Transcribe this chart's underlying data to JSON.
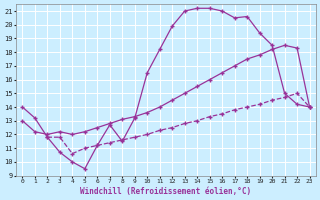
{
  "title": "",
  "xlabel": "Windchill (Refroidissement éolien,°C)",
  "bg_color": "#cceeff",
  "line_color": "#993399",
  "grid_color": "#ffffff",
  "xlim": [
    -0.5,
    23.5
  ],
  "ylim": [
    9,
    21.5
  ],
  "yticks": [
    9,
    10,
    11,
    12,
    13,
    14,
    15,
    16,
    17,
    18,
    19,
    20,
    21
  ],
  "xticks": [
    0,
    1,
    2,
    3,
    4,
    5,
    6,
    7,
    8,
    9,
    10,
    11,
    12,
    13,
    14,
    15,
    16,
    17,
    18,
    19,
    20,
    21,
    22,
    23
  ],
  "line1_x": [
    0,
    1,
    2,
    3,
    4,
    5,
    6,
    7,
    8,
    9,
    10,
    11,
    12,
    13,
    14,
    15,
    16,
    17,
    18,
    19,
    20,
    21,
    22,
    23
  ],
  "line1_y": [
    14.0,
    13.2,
    11.8,
    10.7,
    10.0,
    9.5,
    11.2,
    12.7,
    11.5,
    13.2,
    16.5,
    18.2,
    19.9,
    21.0,
    21.2,
    21.2,
    21.0,
    20.5,
    20.6,
    19.4,
    18.5,
    15.0,
    14.2,
    14.0
  ],
  "line2_x": [
    0,
    1,
    2,
    3,
    4,
    5,
    6,
    7,
    8,
    9,
    10,
    11,
    12,
    13,
    14,
    15,
    16,
    17,
    18,
    19,
    20,
    21,
    22,
    23
  ],
  "line2_y": [
    13.0,
    12.2,
    12.0,
    12.2,
    12.0,
    12.2,
    12.5,
    12.8,
    13.1,
    13.3,
    13.6,
    14.0,
    14.5,
    15.0,
    15.5,
    16.0,
    16.5,
    17.0,
    17.5,
    17.8,
    18.2,
    18.5,
    18.3,
    14.0
  ],
  "line3_x": [
    2,
    3,
    4,
    5,
    6,
    7,
    8,
    9,
    10,
    11,
    12,
    13,
    14,
    15,
    16,
    17,
    18,
    19,
    20,
    21,
    22,
    23
  ],
  "line3_y": [
    11.8,
    11.8,
    10.6,
    11.0,
    11.2,
    11.4,
    11.6,
    11.8,
    12.0,
    12.3,
    12.5,
    12.8,
    13.0,
    13.3,
    13.5,
    13.8,
    14.0,
    14.2,
    14.5,
    14.7,
    15.0,
    14.0
  ]
}
